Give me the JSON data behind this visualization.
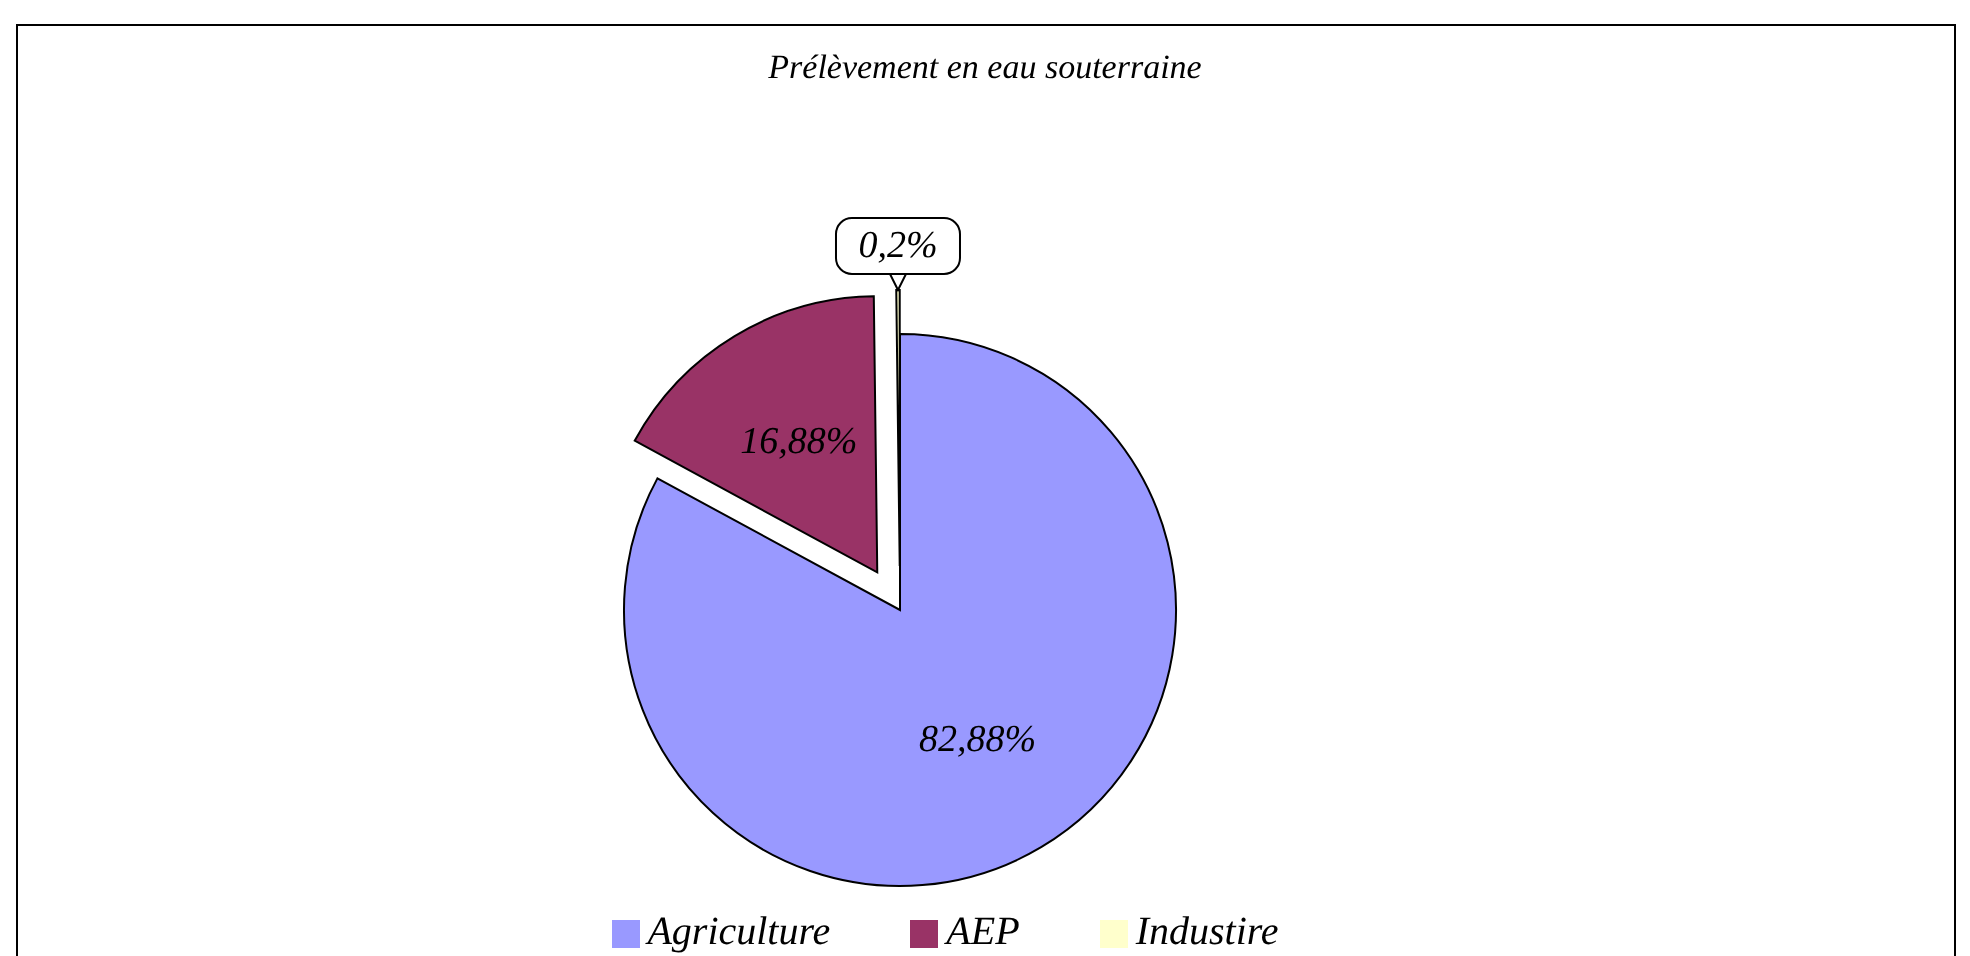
{
  "chart_data": {
    "type": "pie",
    "title": "Prélèvement en eau souterraine",
    "categories": [
      "Agriculture",
      "AEP",
      "Industire"
    ],
    "values": [
      82.88,
      16.88,
      0.2
    ],
    "colors": [
      "#9999ff",
      "#993366",
      "#ffffcc"
    ],
    "value_labels": [
      "82,88%",
      "16,88%",
      "0,2%"
    ],
    "legend": "bottom"
  }
}
